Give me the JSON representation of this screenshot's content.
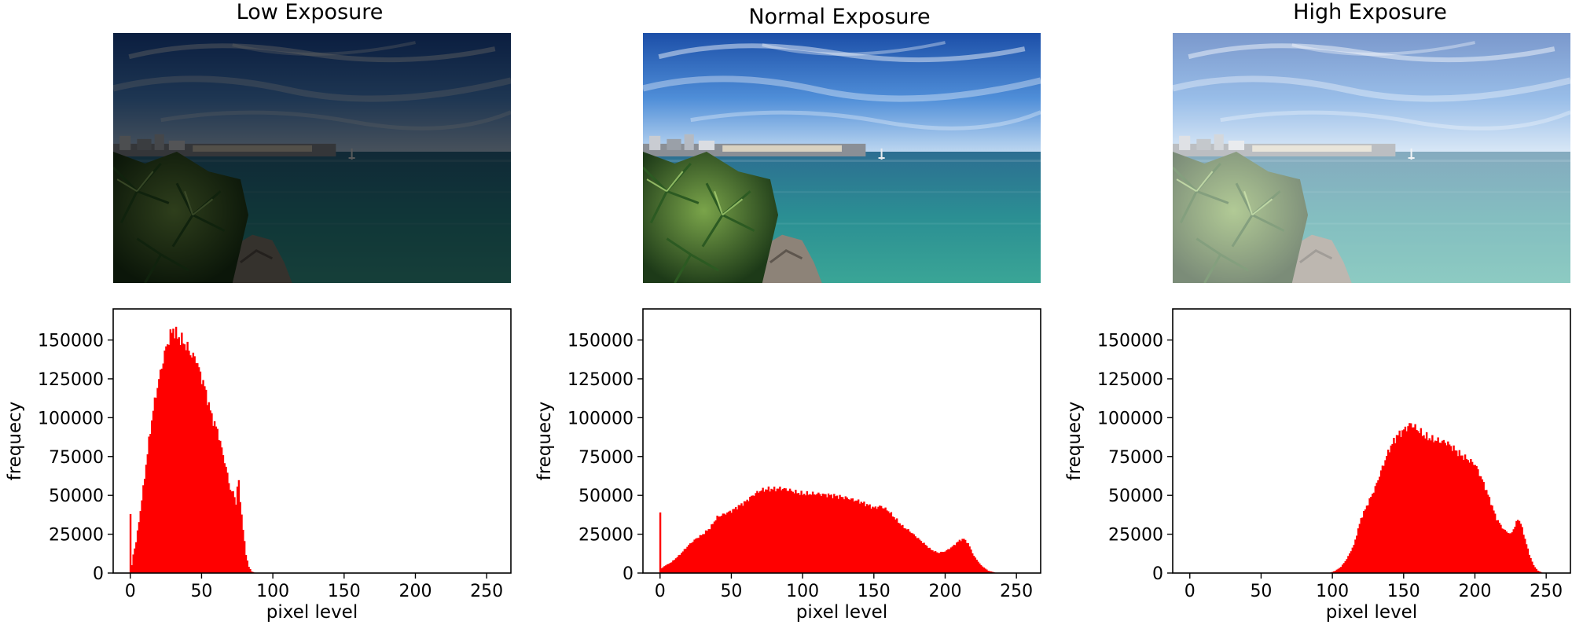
{
  "chart_data": [
    {
      "type": "bar",
      "title": "Low Exposure",
      "xlabel": "pixel level",
      "ylabel": "frequecy",
      "xlim": [
        -12,
        267
      ],
      "ylim": [
        0,
        170000
      ],
      "xticks": [
        0,
        50,
        100,
        150,
        200,
        250
      ],
      "yticks": [
        0,
        25000,
        50000,
        75000,
        100000,
        125000,
        150000
      ],
      "color": "#ff0000",
      "points": [
        [
          0,
          38000
        ],
        [
          1,
          5000
        ],
        [
          2,
          12000
        ],
        [
          4,
          20000
        ],
        [
          7,
          40000
        ],
        [
          10,
          62000
        ],
        [
          13,
          85000
        ],
        [
          16,
          105000
        ],
        [
          19,
          120000
        ],
        [
          22,
          133000
        ],
        [
          25,
          145000
        ],
        [
          28,
          153000
        ],
        [
          30,
          157000
        ],
        [
          33,
          152000
        ],
        [
          36,
          150000
        ],
        [
          40,
          145000
        ],
        [
          43,
          140000
        ],
        [
          46,
          138000
        ],
        [
          49,
          128000
        ],
        [
          52,
          120000
        ],
        [
          55,
          108000
        ],
        [
          58,
          98000
        ],
        [
          61,
          92000
        ],
        [
          64,
          80000
        ],
        [
          67,
          68000
        ],
        [
          70,
          54000
        ],
        [
          73,
          50000
        ],
        [
          74,
          44000
        ],
        [
          75,
          56000
        ],
        [
          76,
          58000
        ],
        [
          77,
          47000
        ],
        [
          79,
          28000
        ],
        [
          81,
          12000
        ],
        [
          83,
          4000
        ],
        [
          85,
          1000
        ],
        [
          87,
          300
        ],
        [
          90,
          0
        ]
      ]
    },
    {
      "type": "bar",
      "title": "Normal Exposure",
      "xlabel": "pixel level",
      "ylabel": "frequecy",
      "xlim": [
        -12,
        267
      ],
      "ylim": [
        0,
        170000
      ],
      "xticks": [
        0,
        50,
        100,
        150,
        200,
        250
      ],
      "yticks": [
        0,
        25000,
        50000,
        75000,
        100000,
        125000,
        150000
      ],
      "color": "#ff0000",
      "points": [
        [
          0,
          39000
        ],
        [
          1,
          3000
        ],
        [
          3,
          4500
        ],
        [
          8,
          7000
        ],
        [
          14,
          12000
        ],
        [
          20,
          18000
        ],
        [
          25,
          22000
        ],
        [
          30,
          25000
        ],
        [
          35,
          29000
        ],
        [
          40,
          36000
        ],
        [
          45,
          38000
        ],
        [
          50,
          40000
        ],
        [
          55,
          43000
        ],
        [
          60,
          46000
        ],
        [
          65,
          50000
        ],
        [
          70,
          53000
        ],
        [
          75,
          54000
        ],
        [
          80,
          54000
        ],
        [
          85,
          54500
        ],
        [
          90,
          53500
        ],
        [
          95,
          52000
        ],
        [
          100,
          51000
        ],
        [
          110,
          51000
        ],
        [
          120,
          50000
        ],
        [
          130,
          48500
        ],
        [
          140,
          46000
        ],
        [
          150,
          42000
        ],
        [
          155,
          43000
        ],
        [
          160,
          40000
        ],
        [
          165,
          35000
        ],
        [
          170,
          30000
        ],
        [
          175,
          27000
        ],
        [
          180,
          23000
        ],
        [
          185,
          19000
        ],
        [
          190,
          15000
        ],
        [
          195,
          13000
        ],
        [
          200,
          14000
        ],
        [
          205,
          17000
        ],
        [
          210,
          21000
        ],
        [
          213,
          22000
        ],
        [
          216,
          19000
        ],
        [
          220,
          11000
        ],
        [
          225,
          5000
        ],
        [
          230,
          1500
        ],
        [
          235,
          300
        ],
        [
          240,
          0
        ],
        [
          255,
          0
        ]
      ]
    },
    {
      "type": "bar",
      "title": "High Exposure",
      "xlabel": "pixel level",
      "ylabel": "frequecy",
      "xlim": [
        -12,
        267
      ],
      "ylim": [
        0,
        170000
      ],
      "xticks": [
        0,
        50,
        100,
        150,
        200,
        250
      ],
      "yticks": [
        0,
        25000,
        50000,
        75000,
        100000,
        125000,
        150000
      ],
      "color": "#ff0000",
      "points": [
        [
          0,
          0
        ],
        [
          98,
          0
        ],
        [
          102,
          1500
        ],
        [
          106,
          4000
        ],
        [
          110,
          9000
        ],
        [
          115,
          18000
        ],
        [
          120,
          35000
        ],
        [
          125,
          45000
        ],
        [
          130,
          55000
        ],
        [
          135,
          68000
        ],
        [
          140,
          80000
        ],
        [
          145,
          88000
        ],
        [
          150,
          92000
        ],
        [
          155,
          96000
        ],
        [
          160,
          92000
        ],
        [
          165,
          88000
        ],
        [
          170,
          86000
        ],
        [
          175,
          85000
        ],
        [
          180,
          84000
        ],
        [
          185,
          80000
        ],
        [
          190,
          76000
        ],
        [
          195,
          73000
        ],
        [
          200,
          70000
        ],
        [
          205,
          60000
        ],
        [
          210,
          48000
        ],
        [
          215,
          35000
        ],
        [
          220,
          28000
        ],
        [
          225,
          25000
        ],
        [
          228,
          30000
        ],
        [
          230,
          35000
        ],
        [
          232,
          32000
        ],
        [
          235,
          22000
        ],
        [
          238,
          12000
        ],
        [
          241,
          5000
        ],
        [
          244,
          1500
        ],
        [
          247,
          300
        ],
        [
          250,
          0
        ]
      ]
    }
  ]
}
